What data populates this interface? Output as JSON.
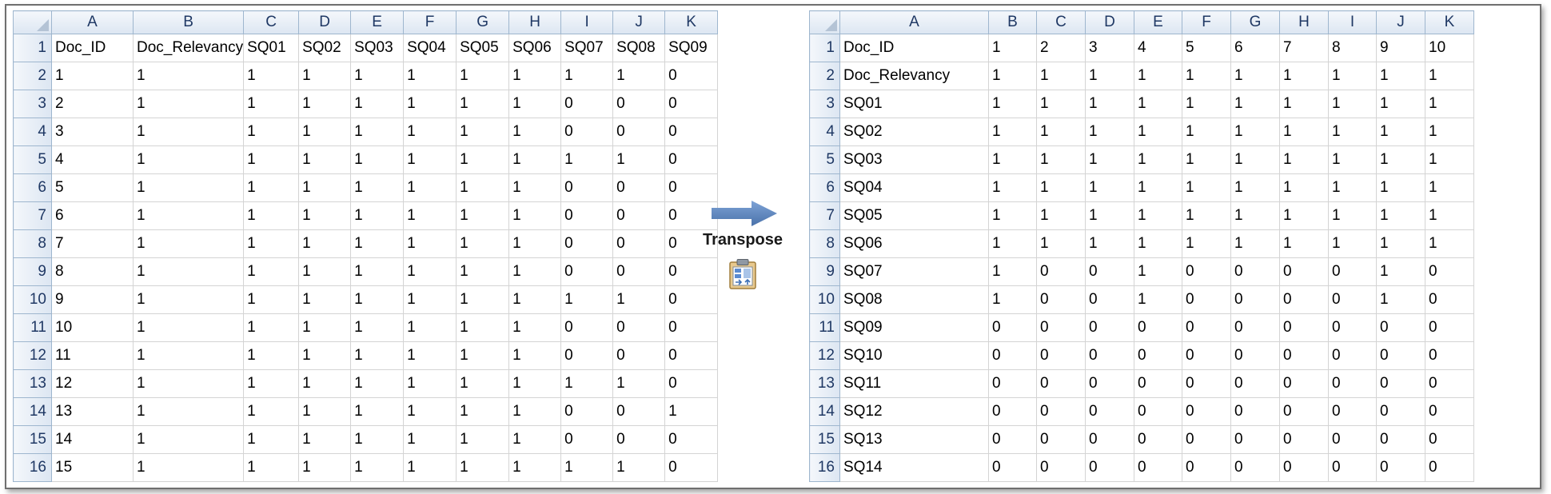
{
  "column_letters": [
    "A",
    "B",
    "C",
    "D",
    "E",
    "F",
    "G",
    "H",
    "I",
    "J",
    "K"
  ],
  "row_numbers": [
    "1",
    "2",
    "3",
    "4",
    "5",
    "6",
    "7",
    "8",
    "9",
    "10",
    "11",
    "12",
    "13",
    "14",
    "15",
    "16"
  ],
  "left_sheet": {
    "rows": [
      [
        "Doc_ID",
        "Doc_Relevancy",
        "SQ01",
        "SQ02",
        "SQ03",
        "SQ04",
        "SQ05",
        "SQ06",
        "SQ07",
        "SQ08",
        "SQ09"
      ],
      [
        "1",
        "1",
        "1",
        "1",
        "1",
        "1",
        "1",
        "1",
        "1",
        "1",
        "0"
      ],
      [
        "2",
        "1",
        "1",
        "1",
        "1",
        "1",
        "1",
        "1",
        "0",
        "0",
        "0"
      ],
      [
        "3",
        "1",
        "1",
        "1",
        "1",
        "1",
        "1",
        "1",
        "0",
        "0",
        "0"
      ],
      [
        "4",
        "1",
        "1",
        "1",
        "1",
        "1",
        "1",
        "1",
        "1",
        "1",
        "0"
      ],
      [
        "5",
        "1",
        "1",
        "1",
        "1",
        "1",
        "1",
        "1",
        "0",
        "0",
        "0"
      ],
      [
        "6",
        "1",
        "1",
        "1",
        "1",
        "1",
        "1",
        "1",
        "0",
        "0",
        "0"
      ],
      [
        "7",
        "1",
        "1",
        "1",
        "1",
        "1",
        "1",
        "1",
        "0",
        "0",
        "0"
      ],
      [
        "8",
        "1",
        "1",
        "1",
        "1",
        "1",
        "1",
        "1",
        "0",
        "0",
        "0"
      ],
      [
        "9",
        "1",
        "1",
        "1",
        "1",
        "1",
        "1",
        "1",
        "1",
        "1",
        "0"
      ],
      [
        "10",
        "1",
        "1",
        "1",
        "1",
        "1",
        "1",
        "1",
        "0",
        "0",
        "0"
      ],
      [
        "11",
        "1",
        "1",
        "1",
        "1",
        "1",
        "1",
        "1",
        "0",
        "0",
        "0"
      ],
      [
        "12",
        "1",
        "1",
        "1",
        "1",
        "1",
        "1",
        "1",
        "1",
        "1",
        "0"
      ],
      [
        "13",
        "1",
        "1",
        "1",
        "1",
        "1",
        "1",
        "1",
        "0",
        "0",
        "1"
      ],
      [
        "14",
        "1",
        "1",
        "1",
        "1",
        "1",
        "1",
        "1",
        "0",
        "0",
        "0"
      ],
      [
        "15",
        "1",
        "1",
        "1",
        "1",
        "1",
        "1",
        "1",
        "1",
        "1",
        "0"
      ]
    ]
  },
  "right_sheet": {
    "rows": [
      [
        "Doc_ID",
        "1",
        "2",
        "3",
        "4",
        "5",
        "6",
        "7",
        "8",
        "9",
        "10"
      ],
      [
        "Doc_Relevancy",
        "1",
        "1",
        "1",
        "1",
        "1",
        "1",
        "1",
        "1",
        "1",
        "1"
      ],
      [
        "SQ01",
        "1",
        "1",
        "1",
        "1",
        "1",
        "1",
        "1",
        "1",
        "1",
        "1"
      ],
      [
        "SQ02",
        "1",
        "1",
        "1",
        "1",
        "1",
        "1",
        "1",
        "1",
        "1",
        "1"
      ],
      [
        "SQ03",
        "1",
        "1",
        "1",
        "1",
        "1",
        "1",
        "1",
        "1",
        "1",
        "1"
      ],
      [
        "SQ04",
        "1",
        "1",
        "1",
        "1",
        "1",
        "1",
        "1",
        "1",
        "1",
        "1"
      ],
      [
        "SQ05",
        "1",
        "1",
        "1",
        "1",
        "1",
        "1",
        "1",
        "1",
        "1",
        "1"
      ],
      [
        "SQ06",
        "1",
        "1",
        "1",
        "1",
        "1",
        "1",
        "1",
        "1",
        "1",
        "1"
      ],
      [
        "SQ07",
        "1",
        "0",
        "0",
        "1",
        "0",
        "0",
        "0",
        "0",
        "1",
        "0"
      ],
      [
        "SQ08",
        "1",
        "0",
        "0",
        "1",
        "0",
        "0",
        "0",
        "0",
        "1",
        "0"
      ],
      [
        "SQ09",
        "0",
        "0",
        "0",
        "0",
        "0",
        "0",
        "0",
        "0",
        "0",
        "0"
      ],
      [
        "SQ10",
        "0",
        "0",
        "0",
        "0",
        "0",
        "0",
        "0",
        "0",
        "0",
        "0"
      ],
      [
        "SQ11",
        "0",
        "0",
        "0",
        "0",
        "0",
        "0",
        "0",
        "0",
        "0",
        "0"
      ],
      [
        "SQ12",
        "0",
        "0",
        "0",
        "0",
        "0",
        "0",
        "0",
        "0",
        "0",
        "0"
      ],
      [
        "SQ13",
        "0",
        "0",
        "0",
        "0",
        "0",
        "0",
        "0",
        "0",
        "0",
        "0"
      ],
      [
        "SQ14",
        "0",
        "0",
        "0",
        "0",
        "0",
        "0",
        "0",
        "0",
        "0",
        "0"
      ]
    ]
  },
  "middle": {
    "label": "Transpose",
    "arrow_icon": "right-arrow-icon",
    "paste_icon": "paste-transpose-icon",
    "arrow_color": "#4f81bd"
  },
  "colors": {
    "header_text": "#1f3864",
    "header_border": "#9eb6ce",
    "gridline": "#d4d4d4"
  }
}
